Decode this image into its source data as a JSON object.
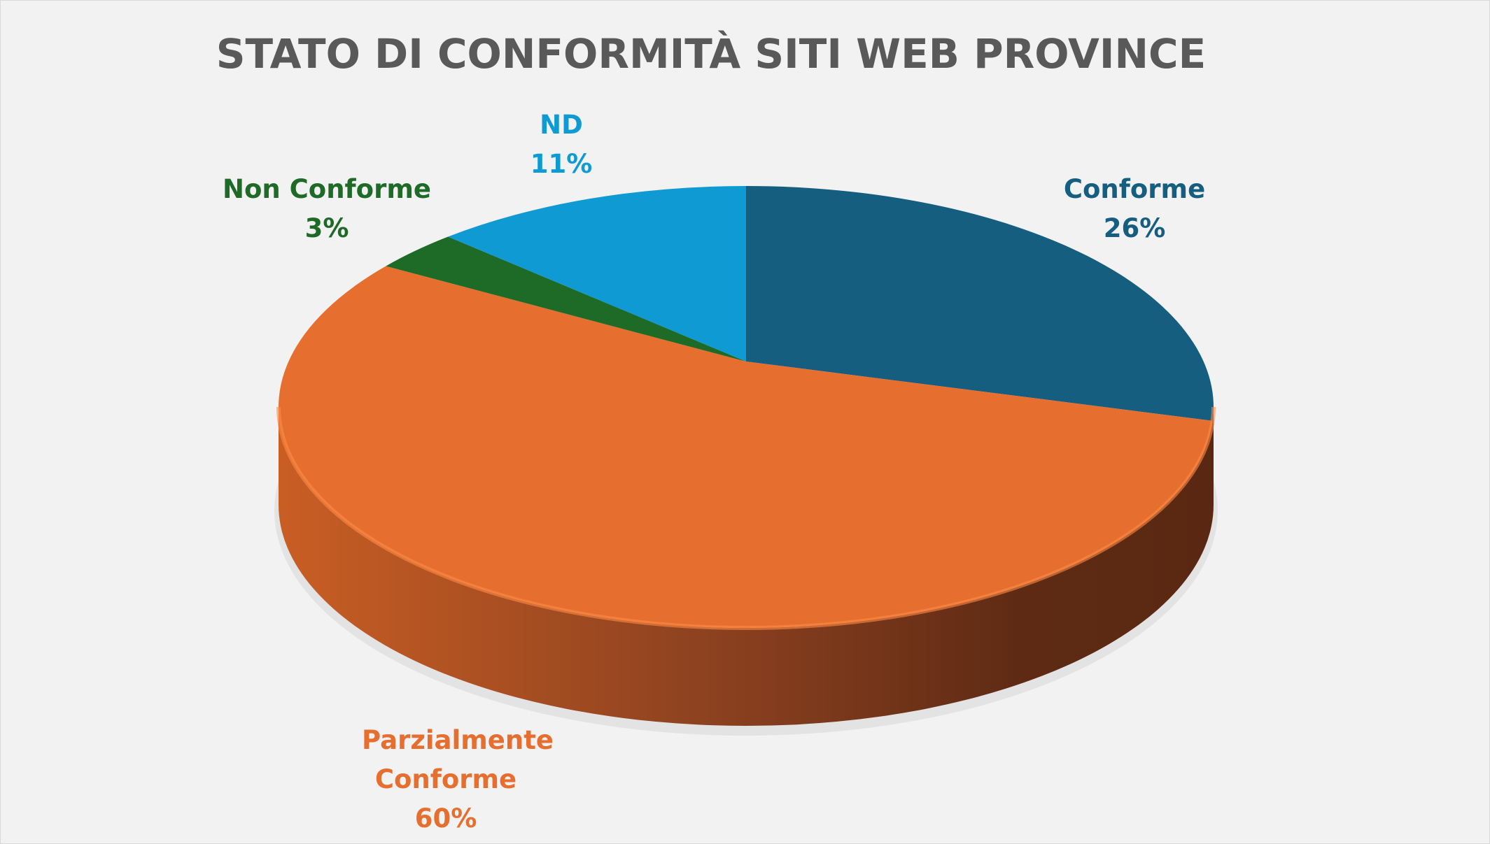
{
  "chart_data": {
    "type": "pie",
    "style": "3d",
    "title": "STATO DI CONFORMITÀ SITI WEB PROVINCE",
    "slices": [
      {
        "label": "Conforme",
        "value": 26,
        "display": "26%",
        "color": "#155E80"
      },
      {
        "label": "Parzialmente Conforme",
        "value": 60,
        "display": "60%",
        "color": "#E66F30"
      },
      {
        "label": "Non Conforme",
        "value": 3,
        "display": "3%",
        "color": "#1D6B26"
      },
      {
        "label": "ND",
        "value": 11,
        "display": "11%",
        "color": "#0F9AD3"
      }
    ],
    "legend": "none",
    "data_labels": "category and percentage"
  }
}
